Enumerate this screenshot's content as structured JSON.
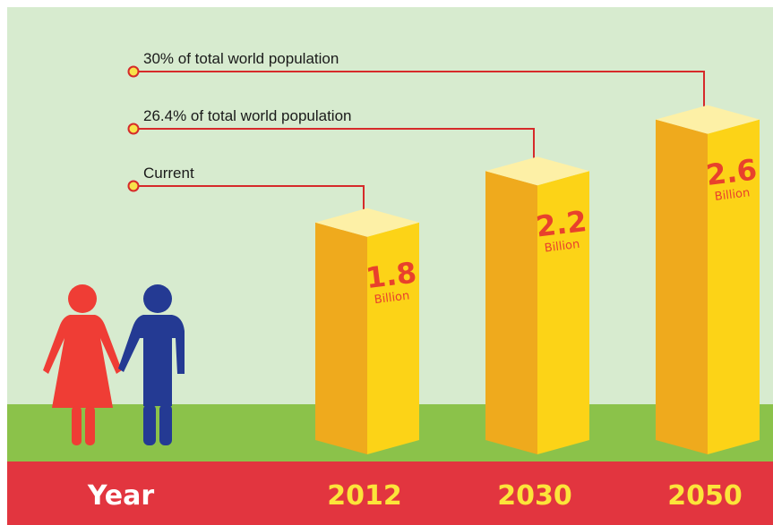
{
  "chart_data": {
    "type": "bar",
    "categories": [
      "2012",
      "2030",
      "2050"
    ],
    "values": [
      1.8,
      2.2,
      2.6
    ],
    "value_labels": [
      "1.8",
      "2.2",
      "2.6"
    ],
    "unit": "Billion",
    "annotations": [
      "Current",
      "26.4% of total world population",
      "30% of total world population"
    ],
    "axis_label": "Year",
    "colors": {
      "sky": "#d7ebcf",
      "ground": "#8bc24a",
      "band": "#e2353f",
      "bar_front": "#fcd317",
      "bar_side": "#efaa1d",
      "bar_top": "#fdf0a6",
      "value_text": "#e8412c",
      "callout_line": "#d62a2a",
      "callout_dot": "#f7e34a",
      "year_axis_text": "#ffffff",
      "year_text": "#fce43a",
      "woman": "#ef3d35",
      "man": "#243a93"
    }
  }
}
